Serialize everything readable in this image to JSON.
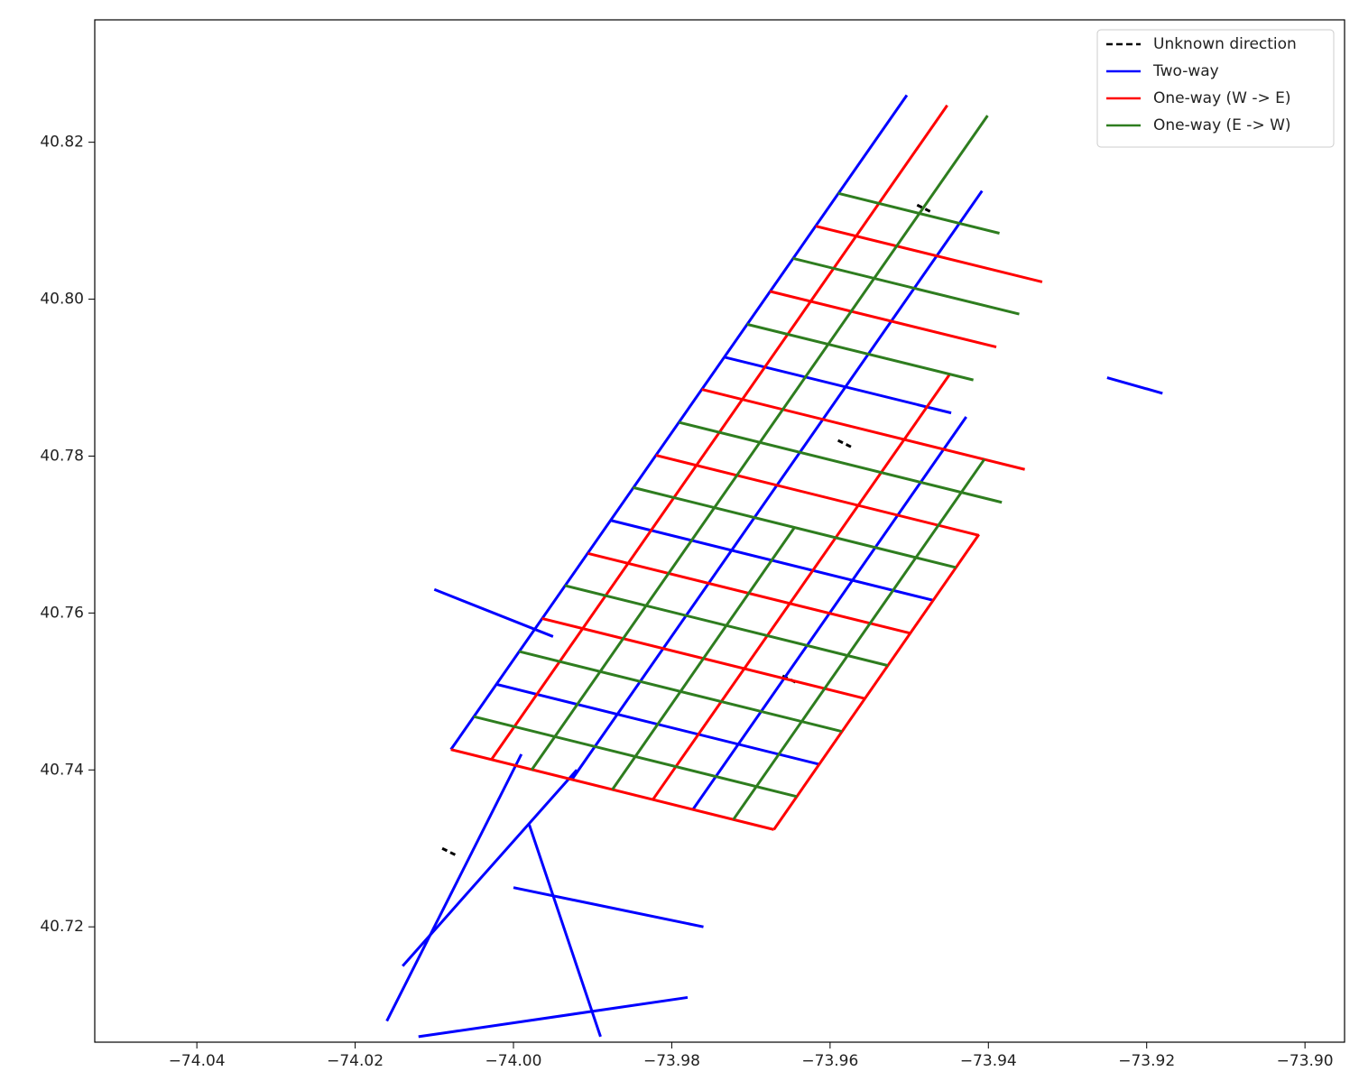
{
  "chart_data": {
    "type": "segments",
    "xlim": [
      -74.0529,
      -73.895
    ],
    "ylim": [
      40.7053,
      40.8356
    ],
    "xticks": [
      {
        "value": -74.04,
        "label": "−74.04"
      },
      {
        "value": -74.02,
        "label": "−74.02"
      },
      {
        "value": -74.0,
        "label": "−74.00"
      },
      {
        "value": -73.98,
        "label": "−73.98"
      },
      {
        "value": -73.96,
        "label": "−73.96"
      },
      {
        "value": -73.94,
        "label": "−73.94"
      },
      {
        "value": -73.92,
        "label": "−73.92"
      },
      {
        "value": -73.9,
        "label": "−73.90"
      }
    ],
    "yticks": [
      40.72,
      40.74,
      40.76,
      40.78,
      {
        "value": 40.8,
        "label": "40.80"
      },
      40.82
    ],
    "legend": "upper right",
    "series": [
      {
        "name": "Unknown direction",
        "color": "#000000",
        "linestyle": "dashed",
        "segments": [
          [
            -74.009,
            40.73,
            -74.007,
            40.729
          ],
          [
            -73.959,
            40.782,
            -73.957,
            40.781
          ],
          [
            -73.949,
            40.812,
            -73.947,
            40.811
          ],
          [
            -73.966,
            40.752,
            -73.964,
            40.751
          ]
        ]
      },
      {
        "name": "Two-way",
        "color": "#0000ff",
        "linestyle": "solid",
        "segments": [
          [
            -74.0079,
            40.7426,
            -73.9503,
            40.826
          ],
          [
            -73.9926,
            40.7388,
            -73.9408,
            40.8138
          ],
          [
            -73.9773,
            40.735,
            -73.9428,
            40.785
          ],
          [
            -74.0021,
            40.7509,
            -73.9613,
            40.7407
          ],
          [
            -73.9877,
            40.7718,
            -73.9469,
            40.7616
          ],
          [
            -73.9733,
            40.7926,
            -73.9447,
            40.7855
          ],
          [
            -74.016,
            40.708,
            -73.999,
            40.742
          ],
          [
            -74.012,
            40.706,
            -73.978,
            40.711
          ],
          [
            -74.0,
            40.725,
            -73.976,
            40.72
          ],
          [
            -73.989,
            40.706,
            -73.998,
            40.733
          ],
          [
            -74.014,
            40.715,
            -73.992,
            40.74
          ],
          [
            -74.01,
            40.763,
            -73.995,
            40.757
          ],
          [
            -73.925,
            40.79,
            -73.918,
            40.788
          ]
        ]
      },
      {
        "name": "One-way (W -> E)",
        "color": "#ff0000",
        "linestyle": "solid",
        "segments": [
          [
            -74.0028,
            40.7413,
            -73.9452,
            40.8247
          ],
          [
            -73.9824,
            40.7362,
            -73.9449,
            40.7904
          ],
          [
            -73.9671,
            40.7324,
            -73.9412,
            40.77
          ],
          [
            -74.0079,
            40.7426,
            -73.9671,
            40.7324
          ],
          [
            -73.9964,
            40.7593,
            -73.9556,
            40.7491
          ],
          [
            -73.9906,
            40.7676,
            -73.9498,
            40.7574
          ],
          [
            -73.982,
            40.7801,
            -73.9412,
            40.7699
          ],
          [
            -73.9762,
            40.7885,
            -73.9354,
            40.7783
          ],
          [
            -73.9676,
            40.801,
            -73.939,
            40.7939
          ],
          [
            -73.9618,
            40.8093,
            -73.9332,
            40.8022
          ]
        ]
      },
      {
        "name": "One-way (E -> W)",
        "color": "#2e7d1f",
        "linestyle": "solid",
        "segments": [
          [
            -73.9977,
            40.74,
            -73.9401,
            40.8234
          ],
          [
            -73.9875,
            40.7375,
            -73.9645,
            40.7709
          ],
          [
            -73.9722,
            40.7337,
            -73.9405,
            40.7796
          ],
          [
            -74.005,
            40.7468,
            -73.9642,
            40.7366
          ],
          [
            -73.9993,
            40.7551,
            -73.9585,
            40.7449
          ],
          [
            -73.9935,
            40.7635,
            -73.9527,
            40.7533
          ],
          [
            -73.9849,
            40.776,
            -73.9441,
            40.7658
          ],
          [
            -73.9791,
            40.7843,
            -73.9383,
            40.7741
          ],
          [
            -73.9705,
            40.7968,
            -73.9419,
            40.7897
          ],
          [
            -73.9647,
            40.8052,
            -73.9361,
            40.7981
          ],
          [
            -73.959,
            40.8135,
            -73.9386,
            40.8084
          ]
        ]
      }
    ]
  }
}
